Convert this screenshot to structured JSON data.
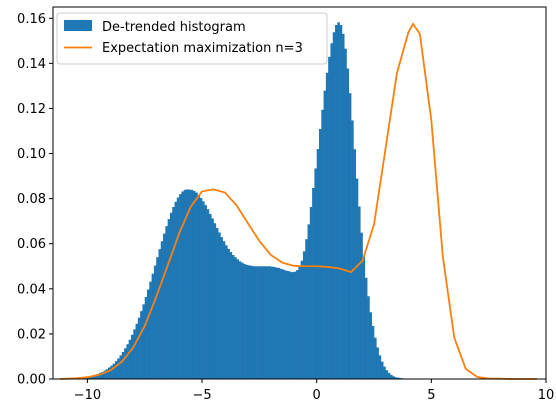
{
  "chart_data": {
    "type": "bar",
    "title": "",
    "xlabel": "",
    "ylabel": "",
    "xlim": [
      -11.5,
      10.0
    ],
    "ylim": [
      0,
      0.165
    ],
    "x_ticks": [
      -10,
      -5,
      0,
      5,
      10
    ],
    "x_tick_labels": [
      "−10",
      "−5",
      "0",
      "5",
      "10"
    ],
    "y_ticks": [
      0.0,
      0.02,
      0.04,
      0.06,
      0.08,
      0.1,
      0.12,
      0.14,
      0.16
    ],
    "y_tick_labels": [
      "0.00",
      "0.02",
      "0.04",
      "0.06",
      "0.08",
      "0.10",
      "0.12",
      "0.14",
      "0.16"
    ],
    "grid": false,
    "legend_position": "top-left",
    "series": [
      {
        "name": "De-trended histogram",
        "kind": "histogram",
        "color": "#1f77b4",
        "bin_width": 0.1,
        "x_start": -10.5,
        "values": [
          0.0004,
          0.0005,
          0.0006,
          0.0007,
          0.0009,
          0.0011,
          0.0013,
          0.0016,
          0.0019,
          0.0022,
          0.0027,
          0.0031,
          0.0037,
          0.0043,
          0.0051,
          0.0059,
          0.0068,
          0.0079,
          0.0091,
          0.0105,
          0.012,
          0.0136,
          0.0154,
          0.0174,
          0.0196,
          0.022,
          0.0245,
          0.0272,
          0.0301,
          0.0331,
          0.0364,
          0.0397,
          0.0432,
          0.0467,
          0.0503,
          0.054,
          0.0576,
          0.0611,
          0.0645,
          0.0678,
          0.0709,
          0.0737,
          0.0763,
          0.0786,
          0.0805,
          0.082,
          0.0832,
          0.0839,
          0.0841,
          0.084,
          0.0839,
          0.0834,
          0.0827,
          0.0816,
          0.0803,
          0.0788,
          0.0771,
          0.0753,
          0.0732,
          0.0712,
          0.0691,
          0.067,
          0.065,
          0.0629,
          0.0611,
          0.0593,
          0.0577,
          0.0563,
          0.055,
          0.054,
          0.0531,
          0.0522,
          0.0516,
          0.051,
          0.0506,
          0.0504,
          0.0502,
          0.05,
          0.05,
          0.05,
          0.05,
          0.05,
          0.05,
          0.05,
          0.05,
          0.0498,
          0.0497,
          0.0494,
          0.0493,
          0.0488,
          0.0485,
          0.0481,
          0.0479,
          0.0476,
          0.0474,
          0.0476,
          0.0483,
          0.0499,
          0.0525,
          0.0566,
          0.062,
          0.0686,
          0.0763,
          0.0847,
          0.0934,
          0.102,
          0.1109,
          0.1194,
          0.1279,
          0.1358,
          0.1429,
          0.1489,
          0.1538,
          0.157,
          0.1582,
          0.157,
          0.1531,
          0.1465,
          0.1377,
          0.1268,
          0.1147,
          0.1019,
          0.0889,
          0.0765,
          0.0649,
          0.0543,
          0.0449,
          0.0367,
          0.0296,
          0.0235,
          0.0183,
          0.014,
          0.0105,
          0.0077,
          0.0055,
          0.0039,
          0.0027,
          0.0018,
          0.0012,
          0.0008,
          0.0006,
          0.0004,
          0.0003,
          0.0002,
          0.0001,
          0.0001
        ]
      },
      {
        "name": "Expectation maximization n=3",
        "kind": "line",
        "color": "#ff7f0e",
        "x": [
          -11.2,
          -10.5,
          -10,
          -9.5,
          -9,
          -8.5,
          -8,
          -7.5,
          -7,
          -6.5,
          -6,
          -5.5,
          -5,
          -4.5,
          -4,
          -3.5,
          -3,
          -2.5,
          -2,
          -1.5,
          -1,
          -0.5,
          0,
          0.5,
          1,
          1.5,
          2,
          2.5,
          3,
          3.5,
          4,
          4.2,
          4.5,
          5,
          5.5,
          6,
          6.5,
          7,
          7.5,
          8,
          8.5,
          9,
          9.6
        ],
        "y": [
          0.0,
          0.0003,
          0.0008,
          0.0018,
          0.0038,
          0.0076,
          0.014,
          0.0235,
          0.0364,
          0.0503,
          0.0645,
          0.0763,
          0.0832,
          0.0841,
          0.0827,
          0.0771,
          0.0691,
          0.0612,
          0.055,
          0.0516,
          0.0502,
          0.05,
          0.05,
          0.0497,
          0.049,
          0.0474,
          0.0525,
          0.0686,
          0.102,
          0.1358,
          0.1538,
          0.1575,
          0.1531,
          0.1147,
          0.0543,
          0.0183,
          0.0045,
          0.0009,
          0.0002,
          0.0001,
          0.0,
          0.0,
          0.0
        ]
      }
    ]
  }
}
